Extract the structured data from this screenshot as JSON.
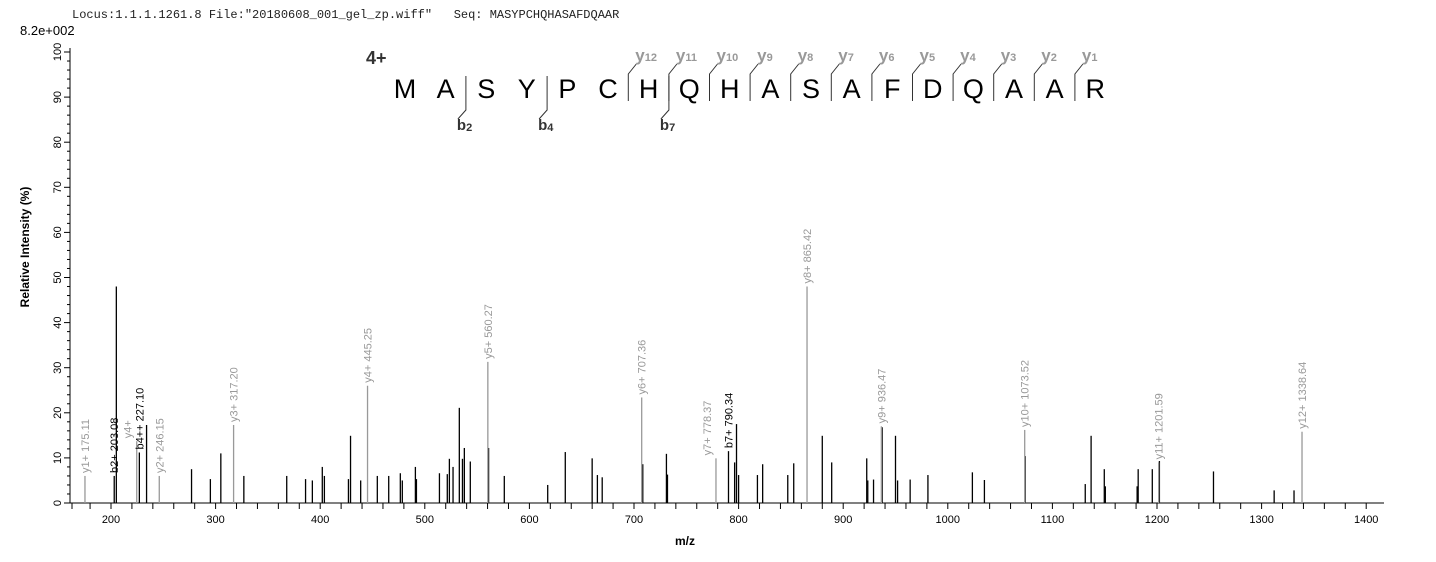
{
  "header": {
    "locus": "Locus:1.1.1.1261.8",
    "file": "File:\"20180608_001_gel_zp.wiff\"",
    "seq": "Seq: MASYPCHQHASAFDQAAR"
  },
  "chart_data": {
    "type": "bar",
    "subtype": "mass-spectrum-stick",
    "max_intensity_label": "8.2e+002",
    "xlabel": "m/z",
    "ylabel": "Relative   Intensity (%)",
    "xlim": [
      161,
      1417
    ],
    "ylim": [
      0,
      100
    ],
    "x_ticks": [
      200,
      300,
      400,
      500,
      600,
      700,
      800,
      900,
      1000,
      1100,
      1200,
      1300,
      1400
    ],
    "y_ticks": [
      0,
      10,
      20,
      30,
      40,
      50,
      60,
      70,
      80,
      90,
      100
    ],
    "grid": false,
    "colors": {
      "y_ion": "#999999",
      "b_ion": "#000000",
      "unmatched": "#000000"
    },
    "charge": "4+",
    "sequence": [
      "M",
      "A",
      "S",
      "Y",
      "P",
      "C",
      "H",
      "Q",
      "H",
      "A",
      "S",
      "A",
      "F",
      "D",
      "Q",
      "A",
      "A",
      "R"
    ],
    "b_ions": [
      {
        "label": "b",
        "sub": "2",
        "after": 2
      },
      {
        "label": "b",
        "sub": "4",
        "after": 4
      },
      {
        "label": "b",
        "sub": "7",
        "after": 7
      }
    ],
    "y_ions": [
      {
        "label": "y",
        "sub": "12",
        "after": 6
      },
      {
        "label": "y",
        "sub": "11",
        "after": 7
      },
      {
        "label": "y",
        "sub": "10",
        "after": 8
      },
      {
        "label": "y",
        "sub": "9",
        "after": 9
      },
      {
        "label": "y",
        "sub": "8",
        "after": 10
      },
      {
        "label": "y",
        "sub": "7",
        "after": 11
      },
      {
        "label": "y",
        "sub": "6",
        "after": 12
      },
      {
        "label": "y",
        "sub": "5",
        "after": 13
      },
      {
        "label": "y",
        "sub": "4",
        "after": 14
      },
      {
        "label": "y",
        "sub": "3",
        "after": 15
      },
      {
        "label": "y",
        "sub": "2",
        "after": 16
      },
      {
        "label": "y",
        "sub": "1",
        "after": 17
      }
    ],
    "peaks": [
      {
        "mz": 175.11,
        "i": 6,
        "ion": "y",
        "label": "y1+ 175.11"
      },
      {
        "mz": 203.08,
        "i": 6,
        "ion": "b",
        "label": "b2+ 203.08"
      },
      {
        "mz": 205.1,
        "i": 48,
        "ion": "u"
      },
      {
        "mz": 224.6,
        "i": 13.7,
        "ion": "y",
        "label": "y4+"
      },
      {
        "mz": 227.1,
        "i": 11.2,
        "ion": "b",
        "label": "b4++ 227.10"
      },
      {
        "mz": 234,
        "i": 17.3,
        "ion": "u"
      },
      {
        "mz": 246.15,
        "i": 6,
        "ion": "y",
        "label": "y2+ 246.15"
      },
      {
        "mz": 277,
        "i": 7.5,
        "ion": "u"
      },
      {
        "mz": 295,
        "i": 5.3,
        "ion": "u"
      },
      {
        "mz": 305,
        "i": 11,
        "ion": "u"
      },
      {
        "mz": 317.2,
        "i": 17.3,
        "ion": "y",
        "label": "y3+ 317.20"
      },
      {
        "mz": 327,
        "i": 6,
        "ion": "u"
      },
      {
        "mz": 368,
        "i": 6,
        "ion": "u"
      },
      {
        "mz": 386,
        "i": 5.3,
        "ion": "u"
      },
      {
        "mz": 392.5,
        "i": 5,
        "ion": "u"
      },
      {
        "mz": 402,
        "i": 8,
        "ion": "u"
      },
      {
        "mz": 404,
        "i": 6,
        "ion": "u"
      },
      {
        "mz": 427,
        "i": 5.3,
        "ion": "u"
      },
      {
        "mz": 429,
        "i": 14.9,
        "ion": "u"
      },
      {
        "mz": 438.7,
        "i": 5,
        "ion": "u"
      },
      {
        "mz": 445.25,
        "i": 26,
        "ion": "y",
        "label": "y4+ 445.25"
      },
      {
        "mz": 454.6,
        "i": 6,
        "ion": "u"
      },
      {
        "mz": 465.5,
        "i": 6,
        "ion": "u"
      },
      {
        "mz": 476.6,
        "i": 6.6,
        "ion": "u"
      },
      {
        "mz": 478.5,
        "i": 5,
        "ion": "u"
      },
      {
        "mz": 491,
        "i": 8,
        "ion": "u"
      },
      {
        "mz": 492,
        "i": 5.3,
        "ion": "u"
      },
      {
        "mz": 514,
        "i": 6.6,
        "ion": "u"
      },
      {
        "mz": 521.5,
        "i": 6.4,
        "ion": "u"
      },
      {
        "mz": 523.5,
        "i": 9.8,
        "ion": "u"
      },
      {
        "mz": 527,
        "i": 8,
        "ion": "u"
      },
      {
        "mz": 533,
        "i": 21.1,
        "ion": "u"
      },
      {
        "mz": 536,
        "i": 9.8,
        "ion": "u"
      },
      {
        "mz": 537.8,
        "i": 12.2,
        "ion": "u"
      },
      {
        "mz": 543.5,
        "i": 9.2,
        "ion": "u"
      },
      {
        "mz": 560.27,
        "i": 31.3,
        "ion": "y",
        "label": "y5+ 560.27"
      },
      {
        "mz": 561,
        "i": 12.2,
        "ion": "u"
      },
      {
        "mz": 576,
        "i": 6,
        "ion": "u"
      },
      {
        "mz": 617.5,
        "i": 4,
        "ion": "u"
      },
      {
        "mz": 634.3,
        "i": 11.3,
        "ion": "u"
      },
      {
        "mz": 660,
        "i": 9.9,
        "ion": "u"
      },
      {
        "mz": 665,
        "i": 6.2,
        "ion": "u"
      },
      {
        "mz": 669.6,
        "i": 5.7,
        "ion": "u"
      },
      {
        "mz": 707.36,
        "i": 23.4,
        "ion": "y",
        "label": "y6+ 707.36"
      },
      {
        "mz": 708.4,
        "i": 8.6,
        "ion": "u"
      },
      {
        "mz": 731,
        "i": 10.9,
        "ion": "u"
      },
      {
        "mz": 732,
        "i": 6.3,
        "ion": "u"
      },
      {
        "mz": 778.37,
        "i": 9.9,
        "ion": "y",
        "label": "y7+ 778.37"
      },
      {
        "mz": 790.34,
        "i": 11.5,
        "ion": "b",
        "label": "b7+ 790.34"
      },
      {
        "mz": 796.2,
        "i": 9,
        "ion": "u"
      },
      {
        "mz": 798,
        "i": 17.5,
        "ion": "u"
      },
      {
        "mz": 800,
        "i": 6.2,
        "ion": "u"
      },
      {
        "mz": 818,
        "i": 6.2,
        "ion": "u"
      },
      {
        "mz": 823,
        "i": 8.6,
        "ion": "u"
      },
      {
        "mz": 847,
        "i": 6.2,
        "ion": "u"
      },
      {
        "mz": 852.7,
        "i": 8.8,
        "ion": "u"
      },
      {
        "mz": 865.42,
        "i": 48,
        "ion": "y",
        "label": "y8+ 865.42"
      },
      {
        "mz": 880,
        "i": 14.9,
        "ion": "u"
      },
      {
        "mz": 889,
        "i": 9,
        "ion": "u"
      },
      {
        "mz": 922.5,
        "i": 9.9,
        "ion": "u"
      },
      {
        "mz": 923.5,
        "i": 5,
        "ion": "u"
      },
      {
        "mz": 929,
        "i": 5.2,
        "ion": "u"
      },
      {
        "mz": 936.47,
        "i": 17,
        "ion": "y",
        "label": "y9+ 936.47"
      },
      {
        "mz": 937.2,
        "i": 16.8,
        "ion": "u"
      },
      {
        "mz": 950,
        "i": 14.9,
        "ion": "u"
      },
      {
        "mz": 952,
        "i": 5,
        "ion": "u"
      },
      {
        "mz": 964,
        "i": 5.2,
        "ion": "u"
      },
      {
        "mz": 981,
        "i": 6.2,
        "ion": "u"
      },
      {
        "mz": 1023.5,
        "i": 6.8,
        "ion": "u"
      },
      {
        "mz": 1035,
        "i": 5.1,
        "ion": "u"
      },
      {
        "mz": 1073.52,
        "i": 16.2,
        "ion": "y",
        "label": "y10+ 1073.52"
      },
      {
        "mz": 1074,
        "i": 10.4,
        "ion": "u"
      },
      {
        "mz": 1131.4,
        "i": 4.2,
        "ion": "u"
      },
      {
        "mz": 1137,
        "i": 14.9,
        "ion": "u"
      },
      {
        "mz": 1149.6,
        "i": 7.5,
        "ion": "u"
      },
      {
        "mz": 1150.6,
        "i": 3.7,
        "ion": "u"
      },
      {
        "mz": 1181,
        "i": 3.7,
        "ion": "u"
      },
      {
        "mz": 1182,
        "i": 7.5,
        "ion": "u"
      },
      {
        "mz": 1195.5,
        "i": 7.5,
        "ion": "u"
      },
      {
        "mz": 1201.59,
        "i": 9,
        "ion": "y",
        "label": "y11+ 1201.59"
      },
      {
        "mz": 1202.3,
        "i": 9.3,
        "ion": "u"
      },
      {
        "mz": 1254,
        "i": 7,
        "ion": "u"
      },
      {
        "mz": 1312,
        "i": 2.8,
        "ion": "u"
      },
      {
        "mz": 1331,
        "i": 2.8,
        "ion": "u"
      },
      {
        "mz": 1338.64,
        "i": 15.8,
        "ion": "y",
        "label": "y12+ 1338.64"
      }
    ]
  }
}
